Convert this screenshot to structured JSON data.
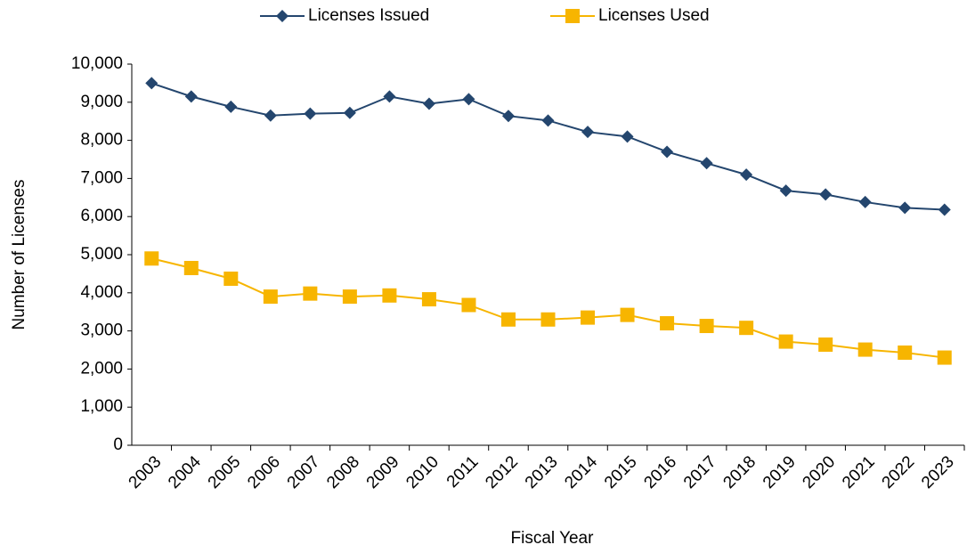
{
  "chart_data": {
    "type": "line",
    "x_label": "Fiscal Year",
    "y_label": "Number of Licenses",
    "categories": [
      "2003",
      "2004",
      "2005",
      "2006",
      "2007",
      "2008",
      "2009",
      "2010",
      "2011",
      "2012",
      "2013",
      "2014",
      "2015",
      "2016",
      "2017",
      "2018",
      "2019",
      "2020",
      "2021",
      "2022",
      "2023"
    ],
    "series": [
      {
        "name": "Licenses Issued",
        "color": "#24466e",
        "marker": "diamond",
        "values": [
          9500,
          9150,
          8880,
          8650,
          8700,
          8720,
          9150,
          8960,
          9080,
          8640,
          8520,
          8220,
          8100,
          7700,
          7400,
          7100,
          6680,
          6580,
          6380,
          6230,
          6180
        ]
      },
      {
        "name": "Licenses Used",
        "color": "#f7b500",
        "marker": "square",
        "values": [
          4900,
          4650,
          4370,
          3900,
          3980,
          3900,
          3930,
          3830,
          3680,
          3300,
          3300,
          3350,
          3420,
          3200,
          3130,
          3080,
          2720,
          2640,
          2510,
          2430,
          2300
        ]
      }
    ],
    "ylim": [
      0,
      10000
    ],
    "yticks": [
      0,
      {
        "value": 1000,
        "label": "1,000"
      },
      {
        "value": 2000,
        "label": "2,000"
      },
      {
        "value": 3000,
        "label": "3,000"
      },
      {
        "value": 4000,
        "label": "4,000"
      },
      {
        "value": 5000,
        "label": "5,000"
      },
      {
        "value": 6000,
        "label": "6,000"
      },
      {
        "value": 7000,
        "label": "7,000"
      },
      {
        "value": 8000,
        "label": "8,000"
      },
      {
        "value": 9000,
        "label": "9,000"
      },
      {
        "value": 10000,
        "label": "10,000"
      }
    ],
    "grid": false,
    "legend": "top"
  }
}
